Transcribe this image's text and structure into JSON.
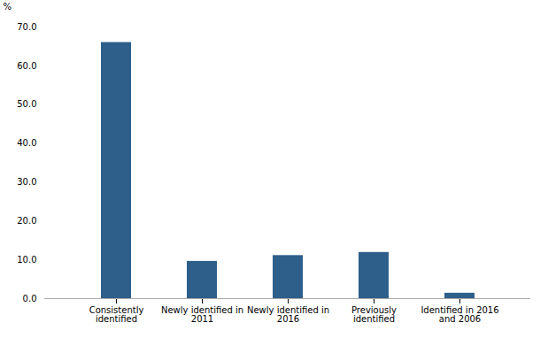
{
  "chart_data": {
    "type": "bar",
    "categories": [
      "Consistently\nidentified",
      "Newly identified in\n2011",
      "Newly identified in\n2016",
      "Previously\nidentified",
      "Identified in 2016\nand 2006"
    ],
    "values": [
      66.0,
      9.6,
      11.1,
      11.9,
      1.4
    ],
    "color": "#2E5F8A",
    "ylabel": "%",
    "ylim": [
      0,
      70.0
    ],
    "yticks": [
      {
        "value": 0.0,
        "label": "0.0"
      },
      {
        "value": 10.0,
        "label": "10.0"
      },
      {
        "value": 20.0,
        "label": "20.0"
      },
      {
        "value": 30.0,
        "label": "30.0"
      },
      {
        "value": 40.0,
        "label": "40.0"
      },
      {
        "value": 50.0,
        "label": "50.0"
      },
      {
        "value": 60.0,
        "label": "60.0"
      },
      {
        "value": 70.0,
        "label": "70.0"
      }
    ],
    "grid": false
  }
}
